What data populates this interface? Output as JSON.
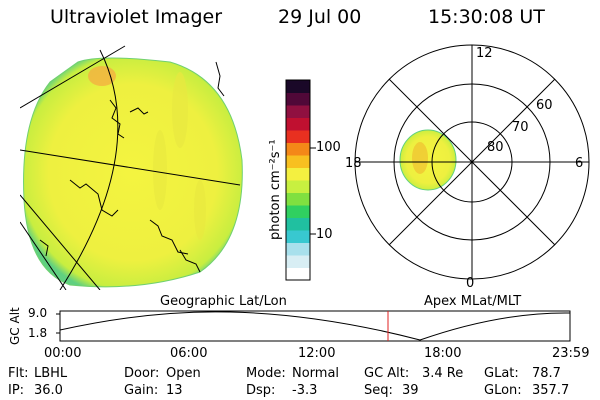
{
  "header": {
    "title": "Ultraviolet Imager",
    "date": "29 Jul 00",
    "time": "15:30:08 UT"
  },
  "colorbar": {
    "unit": "photon cm⁻²s⁻¹",
    "ticks": [
      "100",
      "10"
    ],
    "colors": [
      "#ffffff",
      "#d8eef4",
      "#a8e0ec",
      "#38c8d0",
      "#20c0a0",
      "#30d060",
      "#80e040",
      "#c8f040",
      "#f4f040",
      "#f8c020",
      "#f48818",
      "#e83020",
      "#c01030",
      "#901040",
      "#500838",
      "#1a0828"
    ]
  },
  "left_panel": {
    "label": "Geographic Lat/Lon"
  },
  "right_panel": {
    "label": "Apex MLat/MLT",
    "lat_labels": [
      "80",
      "70",
      "60"
    ],
    "mlt_labels": {
      "top": "12",
      "right": "6",
      "bottom": "0",
      "left": "18"
    }
  },
  "timeline": {
    "axis_label": "GC Alt",
    "yticks": [
      "9.0",
      "1.8"
    ],
    "xticks": [
      "00:00",
      "06:00",
      "12:00",
      "18:00",
      "23:59"
    ],
    "marker_color": "#e02020"
  },
  "info": {
    "row1": {
      "flt_label": "Flt:",
      "flt_value": "LBHL",
      "door_label": "Door:",
      "door_value": "Open",
      "mode_label": "Mode:",
      "mode_value": "Normal",
      "gcalt_label": "GC Alt:",
      "gcalt_value": "3.4 Re",
      "glat_label": "GLat:",
      "glat_value": "78.7"
    },
    "row2": {
      "ip_label": "IP:",
      "ip_value": "36.0",
      "gain_label": "Gain:",
      "gain_value": "13",
      "dsp_label": "Dsp:",
      "dsp_value": "-3.3",
      "seq_label": "Seq:",
      "seq_value": "39",
      "glon_label": "GLon:",
      "glon_value": "357.7"
    }
  }
}
